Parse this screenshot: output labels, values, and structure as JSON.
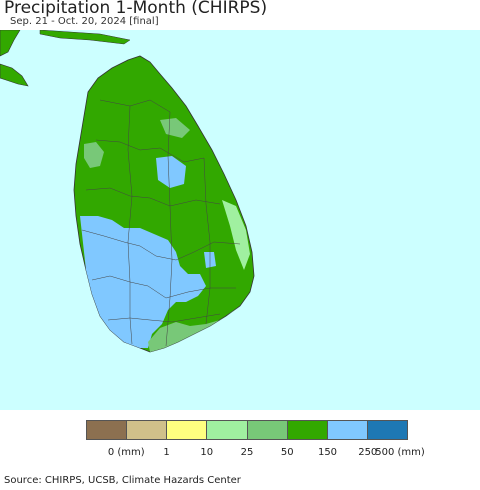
{
  "title": "Precipitation 1-Month (CHIRPS)",
  "subtitle": "Sep. 21 - Oct. 20, 2024 [final]",
  "legend": {
    "colors": [
      "#8c7050",
      "#d0c08a",
      "#ffff80",
      "#a0f0a0",
      "#78c878",
      "#32a800",
      "#80c8ff",
      "#1e78b4"
    ],
    "ticks": [
      "0 (mm)",
      "1",
      "10",
      "25",
      "50",
      "150",
      "250",
      "500 (mm)"
    ]
  },
  "source": "Source: CHIRPS, UCSB, Climate Hazards Center",
  "colors": {
    "ocean": "#ccffff",
    "land_main": "#32a800",
    "land_light_blue": "#80c8ff",
    "land_light_green": "#78c878",
    "land_pale_green": "#a0f0a0",
    "border": "#444444"
  }
}
